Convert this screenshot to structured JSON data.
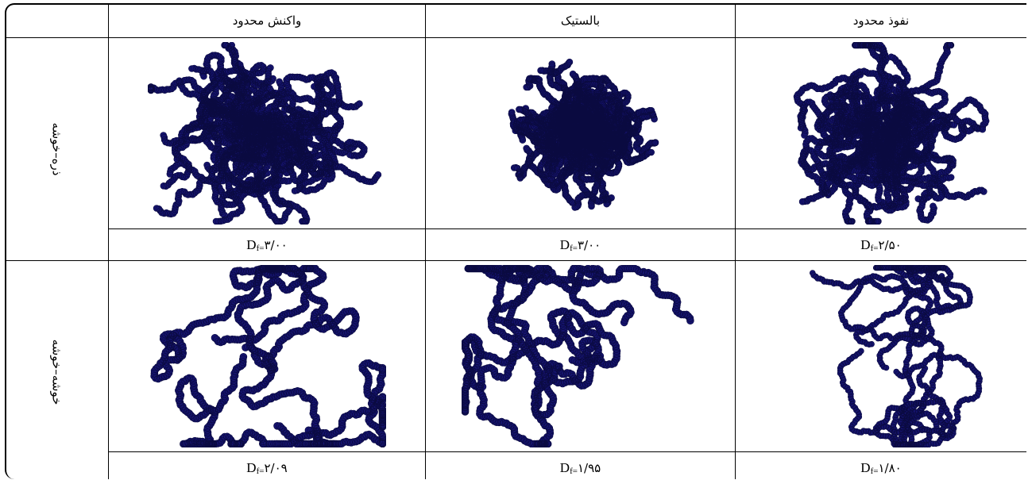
{
  "table": {
    "columns": [
      "نفوذ محدود",
      "بالستیک",
      "واکنش محدود"
    ],
    "rows": [
      {
        "label": "ذره–خوشه",
        "values": [
          {
            "symbol": "D",
            "subscript": "f=",
            "number": "۲/۵۰"
          },
          {
            "symbol": "D",
            "subscript": "f=",
            "number": "۳/۰۰"
          },
          {
            "symbol": "D",
            "subscript": "f=",
            "number": "۳/۰۰"
          }
        ]
      },
      {
        "label": "خوشه–خوشه",
        "values": [
          {
            "symbol": "D",
            "subscript": "f=",
            "number": "۱/۸۰"
          },
          {
            "symbol": "D",
            "subscript": "f=",
            "number": "۱/۹۵"
          },
          {
            "symbol": "D",
            "subscript": "f=",
            "number": "۲/۰۹"
          }
        ]
      }
    ]
  }
}
